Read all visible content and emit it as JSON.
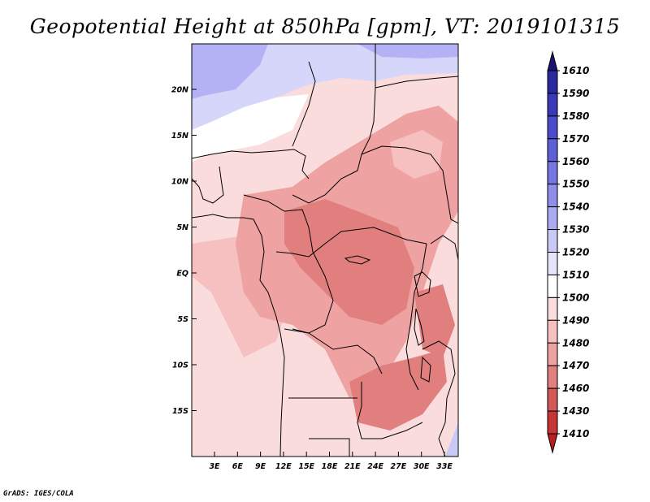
{
  "title": "Geopotential Height at 850hPa [gpm], VT: 2019101315",
  "credit": "GrADS: IGES/COLA",
  "y_axis_labels": [
    "20N",
    "15N",
    "10N",
    "5N",
    "EQ",
    "5S",
    "10S",
    "15S"
  ],
  "x_axis_labels": [
    "3E",
    "6E",
    "9E",
    "12E",
    "15E",
    "18E",
    "21E",
    "24E",
    "27E",
    "30E",
    "33E"
  ],
  "colorbar": {
    "labels": [
      "1610",
      "1590",
      "1580",
      "1570",
      "1560",
      "1550",
      "1540",
      "1530",
      "1520",
      "1510",
      "1500",
      "1490",
      "1480",
      "1470",
      "1460",
      "1430",
      "1410"
    ],
    "colors": [
      "#1a1470",
      "#2a2a9e",
      "#3a3ab8",
      "#4b4bcc",
      "#5f5fd8",
      "#7676e2",
      "#8f8fea",
      "#ababf0",
      "#c9c9f6",
      "#e4e4fb",
      "#ffffff",
      "#fbdcdc",
      "#f6c0c0",
      "#eea2a2",
      "#e17e7e",
      "#d45858",
      "#c73636",
      "#b81e1e"
    ]
  },
  "regions": {
    "sahara_nw": "#b4b2f4",
    "sahara_n": "#d6d6fa",
    "sahel": "#ffffff",
    "pale": "#fbdcdc",
    "light": "#f6c0c0",
    "mid": "#eea2a2",
    "deep": "#e17e7e",
    "se_blue": "#c9c9f6"
  }
}
